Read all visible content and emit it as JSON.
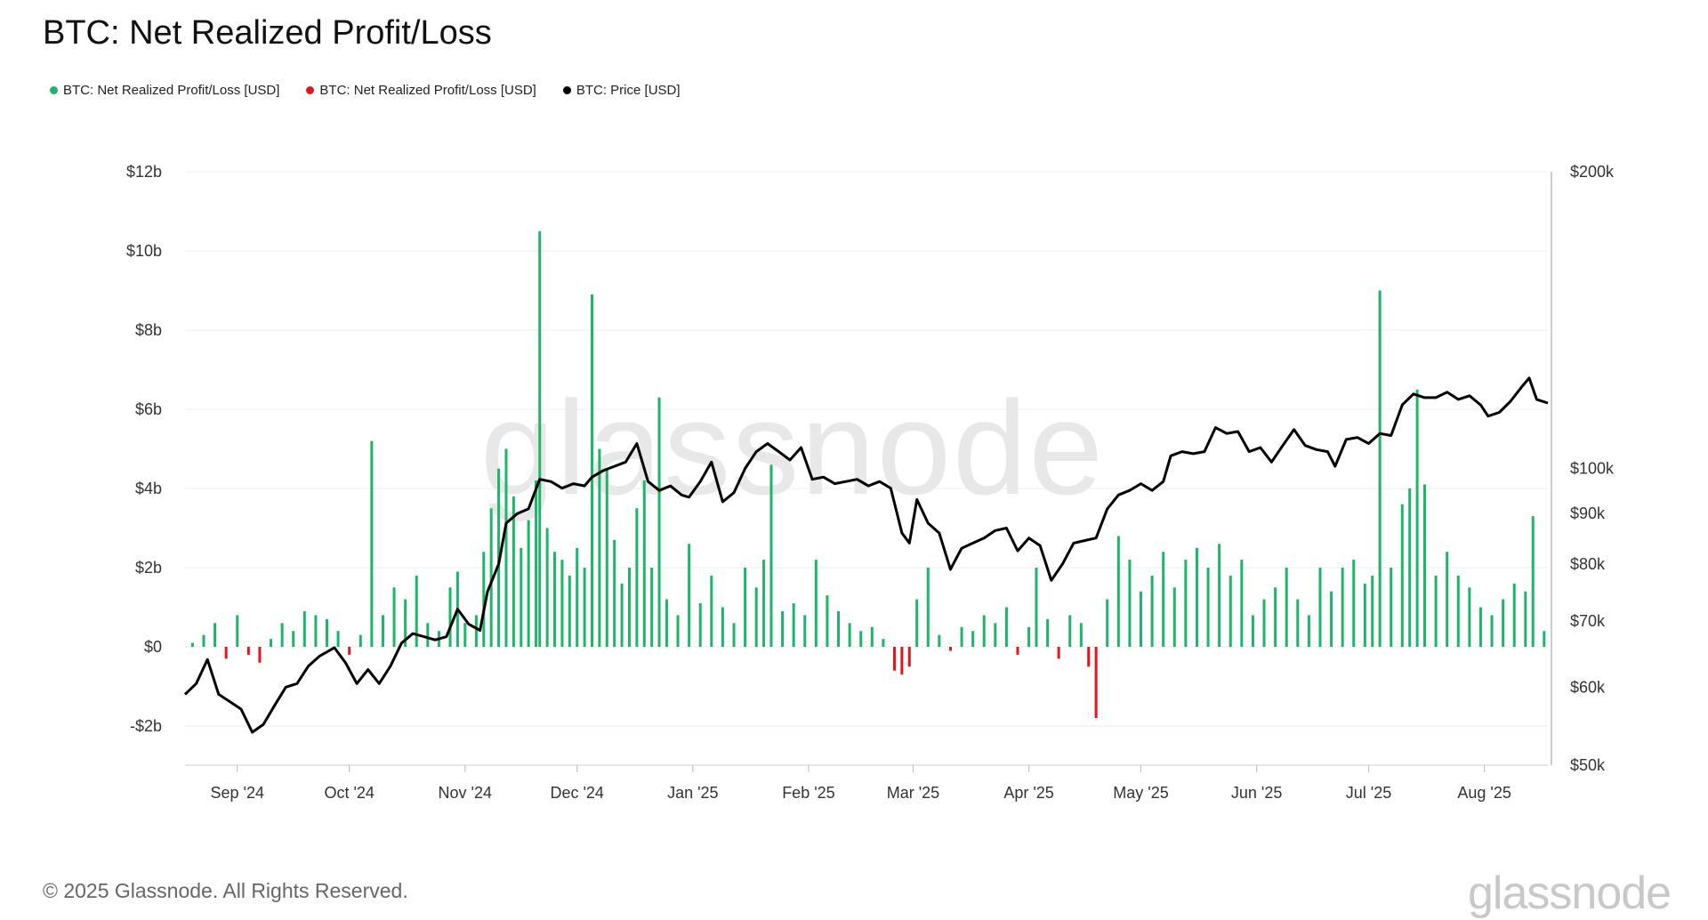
{
  "title": "BTC: Net Realized Profit/Loss",
  "legend": [
    {
      "label": "BTC: Net Realized Profit/Loss [USD]",
      "color": "#1db56a"
    },
    {
      "label": "BTC: Net Realized Profit/Loss [USD]",
      "color": "#e8141c"
    },
    {
      "label": "BTC: Price [USD]",
      "color": "#000000"
    }
  ],
  "footer": "© 2025 Glassnode. All Rights Reserved.",
  "logo": "glassnode",
  "watermark": "glassnode",
  "chart_data": {
    "type": "bar",
    "title": "BTC: Net Realized Profit/Loss",
    "colors": {
      "positive": "#1db56a",
      "negative": "#e8141c",
      "price": "#000000"
    },
    "left_axis": {
      "ticks": [
        -2,
        0,
        2,
        4,
        6,
        8,
        10,
        12
      ],
      "labels": [
        "-$2b",
        "$0",
        "$2b",
        "$4b",
        "$6b",
        "$8b",
        "$10b",
        "$12b"
      ],
      "range": [
        -3,
        12
      ]
    },
    "right_axis": {
      "scale": "log",
      "ticks": [
        50000,
        60000,
        70000,
        80000,
        90000,
        100000,
        200000
      ],
      "labels": [
        "$50k",
        "$60k",
        "$70k",
        "$80k",
        "$90k",
        "$100k",
        "$200k"
      ],
      "range": [
        50000,
        200000
      ]
    },
    "x_axis": {
      "ticks": [
        "Sep '24",
        "Oct '24",
        "Nov '24",
        "Dec '24",
        "Jan '25",
        "Feb '25",
        "Mar '25",
        "Apr '25",
        "May '25",
        "Jun '25",
        "Jul '25",
        "Aug '25"
      ]
    },
    "grid": true,
    "legend_position": "top-left",
    "series": [
      {
        "name": "BTC: Net Realized Profit/Loss [USD]",
        "points": [
          [
            "2024-08-20",
            0.1
          ],
          [
            "2024-08-23",
            0.3
          ],
          [
            "2024-08-26",
            0.6
          ],
          [
            "2024-08-29",
            -0.3
          ],
          [
            "2024-09-01",
            0.8
          ],
          [
            "2024-09-04",
            -0.2
          ],
          [
            "2024-09-07",
            -0.4
          ],
          [
            "2024-09-10",
            0.2
          ],
          [
            "2024-09-13",
            0.6
          ],
          [
            "2024-09-16",
            0.4
          ],
          [
            "2024-09-19",
            0.9
          ],
          [
            "2024-09-22",
            0.8
          ],
          [
            "2024-09-25",
            0.7
          ],
          [
            "2024-09-28",
            0.4
          ],
          [
            "2024-10-01",
            -0.2
          ],
          [
            "2024-10-04",
            0.3
          ],
          [
            "2024-10-07",
            5.2
          ],
          [
            "2024-10-10",
            0.8
          ],
          [
            "2024-10-13",
            1.5
          ],
          [
            "2024-10-16",
            1.2
          ],
          [
            "2024-10-19",
            1.8
          ],
          [
            "2024-10-22",
            0.6
          ],
          [
            "2024-10-25",
            0.4
          ],
          [
            "2024-10-28",
            1.5
          ],
          [
            "2024-10-30",
            1.9
          ],
          [
            "2024-11-01",
            0.6
          ],
          [
            "2024-11-04",
            0.8
          ],
          [
            "2024-11-06",
            2.4
          ],
          [
            "2024-11-08",
            3.5
          ],
          [
            "2024-11-10",
            4.5
          ],
          [
            "2024-11-12",
            5.0
          ],
          [
            "2024-11-14",
            3.8
          ],
          [
            "2024-11-16",
            2.5
          ],
          [
            "2024-11-18",
            3.2
          ],
          [
            "2024-11-20",
            4.2
          ],
          [
            "2024-11-21",
            10.5
          ],
          [
            "2024-11-23",
            3.0
          ],
          [
            "2024-11-25",
            2.4
          ],
          [
            "2024-11-27",
            2.2
          ],
          [
            "2024-11-29",
            1.8
          ],
          [
            "2024-12-01",
            2.5
          ],
          [
            "2024-12-03",
            2.0
          ],
          [
            "2024-12-05",
            8.9
          ],
          [
            "2024-12-07",
            5.0
          ],
          [
            "2024-12-09",
            4.5
          ],
          [
            "2024-12-11",
            2.7
          ],
          [
            "2024-12-13",
            1.6
          ],
          [
            "2024-12-15",
            2.0
          ],
          [
            "2024-12-17",
            3.5
          ],
          [
            "2024-12-19",
            4.2
          ],
          [
            "2024-12-21",
            2.0
          ],
          [
            "2024-12-23",
            6.3
          ],
          [
            "2024-12-25",
            1.2
          ],
          [
            "2024-12-28",
            0.8
          ],
          [
            "2024-12-31",
            2.6
          ],
          [
            "2025-01-03",
            1.1
          ],
          [
            "2025-01-06",
            1.8
          ],
          [
            "2025-01-09",
            1.0
          ],
          [
            "2025-01-12",
            0.6
          ],
          [
            "2025-01-15",
            2.0
          ],
          [
            "2025-01-18",
            1.5
          ],
          [
            "2025-01-20",
            2.2
          ],
          [
            "2025-01-22",
            4.6
          ],
          [
            "2025-01-25",
            0.9
          ],
          [
            "2025-01-28",
            1.1
          ],
          [
            "2025-01-31",
            0.8
          ],
          [
            "2025-02-03",
            2.2
          ],
          [
            "2025-02-06",
            1.3
          ],
          [
            "2025-02-09",
            0.9
          ],
          [
            "2025-02-12",
            0.6
          ],
          [
            "2025-02-15",
            0.4
          ],
          [
            "2025-02-18",
            0.5
          ],
          [
            "2025-02-21",
            0.2
          ],
          [
            "2025-02-24",
            -0.6
          ],
          [
            "2025-02-26",
            -0.7
          ],
          [
            "2025-02-28",
            -0.5
          ],
          [
            "2025-03-02",
            1.2
          ],
          [
            "2025-03-05",
            2.0
          ],
          [
            "2025-03-08",
            0.3
          ],
          [
            "2025-03-11",
            -0.1
          ],
          [
            "2025-03-14",
            0.5
          ],
          [
            "2025-03-17",
            0.4
          ],
          [
            "2025-03-20",
            0.8
          ],
          [
            "2025-03-23",
            0.6
          ],
          [
            "2025-03-26",
            1.0
          ],
          [
            "2025-03-29",
            -0.2
          ],
          [
            "2025-04-01",
            0.5
          ],
          [
            "2025-04-03",
            2.0
          ],
          [
            "2025-04-06",
            0.7
          ],
          [
            "2025-04-09",
            -0.3
          ],
          [
            "2025-04-12",
            0.8
          ],
          [
            "2025-04-15",
            0.6
          ],
          [
            "2025-04-17",
            -0.5
          ],
          [
            "2025-04-19",
            -1.8
          ],
          [
            "2025-04-22",
            1.2
          ],
          [
            "2025-04-25",
            2.8
          ],
          [
            "2025-04-28",
            2.2
          ],
          [
            "2025-05-01",
            1.4
          ],
          [
            "2025-05-04",
            1.8
          ],
          [
            "2025-05-07",
            2.4
          ],
          [
            "2025-05-10",
            1.5
          ],
          [
            "2025-05-13",
            2.2
          ],
          [
            "2025-05-16",
            2.5
          ],
          [
            "2025-05-19",
            2.0
          ],
          [
            "2025-05-22",
            2.6
          ],
          [
            "2025-05-25",
            1.8
          ],
          [
            "2025-05-28",
            2.2
          ],
          [
            "2025-05-31",
            0.8
          ],
          [
            "2025-06-03",
            1.2
          ],
          [
            "2025-06-06",
            1.5
          ],
          [
            "2025-06-09",
            2.0
          ],
          [
            "2025-06-12",
            1.2
          ],
          [
            "2025-06-15",
            0.8
          ],
          [
            "2025-06-18",
            2.0
          ],
          [
            "2025-06-21",
            1.4
          ],
          [
            "2025-06-24",
            2.0
          ],
          [
            "2025-06-27",
            2.2
          ],
          [
            "2025-06-30",
            1.6
          ],
          [
            "2025-07-02",
            1.8
          ],
          [
            "2025-07-04",
            9.0
          ],
          [
            "2025-07-07",
            2.0
          ],
          [
            "2025-07-10",
            3.6
          ],
          [
            "2025-07-12",
            4.0
          ],
          [
            "2025-07-14",
            6.5
          ],
          [
            "2025-07-16",
            4.1
          ],
          [
            "2025-07-19",
            1.8
          ],
          [
            "2025-07-22",
            2.4
          ],
          [
            "2025-07-25",
            1.8
          ],
          [
            "2025-07-28",
            1.5
          ],
          [
            "2025-07-31",
            1.0
          ],
          [
            "2025-08-03",
            0.8
          ],
          [
            "2025-08-06",
            1.2
          ],
          [
            "2025-08-09",
            1.6
          ],
          [
            "2025-08-12",
            1.4
          ],
          [
            "2025-08-14",
            3.3
          ],
          [
            "2025-08-17",
            0.4
          ]
        ]
      },
      {
        "name": "BTC: Price [USD]",
        "points": [
          [
            "2024-08-18",
            59000
          ],
          [
            "2024-08-21",
            60500
          ],
          [
            "2024-08-24",
            64000
          ],
          [
            "2024-08-27",
            59000
          ],
          [
            "2024-08-30",
            58000
          ],
          [
            "2024-09-02",
            57000
          ],
          [
            "2024-09-05",
            54000
          ],
          [
            "2024-09-08",
            55000
          ],
          [
            "2024-09-11",
            57500
          ],
          [
            "2024-09-14",
            60000
          ],
          [
            "2024-09-17",
            60500
          ],
          [
            "2024-09-20",
            63000
          ],
          [
            "2024-09-23",
            64500
          ],
          [
            "2024-09-27",
            65800
          ],
          [
            "2024-09-30",
            63500
          ],
          [
            "2024-10-03",
            60500
          ],
          [
            "2024-10-06",
            62500
          ],
          [
            "2024-10-09",
            60500
          ],
          [
            "2024-10-12",
            63000
          ],
          [
            "2024-10-15",
            66500
          ],
          [
            "2024-10-18",
            68000
          ],
          [
            "2024-10-21",
            67500
          ],
          [
            "2024-10-24",
            67000
          ],
          [
            "2024-10-27",
            67500
          ],
          [
            "2024-10-30",
            72000
          ],
          [
            "2024-11-02",
            69500
          ],
          [
            "2024-11-05",
            68500
          ],
          [
            "2024-11-07",
            75000
          ],
          [
            "2024-11-10",
            80000
          ],
          [
            "2024-11-12",
            88000
          ],
          [
            "2024-11-15",
            90000
          ],
          [
            "2024-11-18",
            91000
          ],
          [
            "2024-11-21",
            97500
          ],
          [
            "2024-11-24",
            97000
          ],
          [
            "2024-11-27",
            95500
          ],
          [
            "2024-11-30",
            96500
          ],
          [
            "2024-12-03",
            96000
          ],
          [
            "2024-12-05",
            98000
          ],
          [
            "2024-12-08",
            99500
          ],
          [
            "2024-12-11",
            100500
          ],
          [
            "2024-12-14",
            101500
          ],
          [
            "2024-12-17",
            106000
          ],
          [
            "2024-12-20",
            97000
          ],
          [
            "2024-12-23",
            95000
          ],
          [
            "2024-12-26",
            96000
          ],
          [
            "2024-12-29",
            94000
          ],
          [
            "2024-12-31",
            93500
          ],
          [
            "2025-01-03",
            97000
          ],
          [
            "2025-01-06",
            101500
          ],
          [
            "2025-01-09",
            92500
          ],
          [
            "2025-01-12",
            94500
          ],
          [
            "2025-01-15",
            100000
          ],
          [
            "2025-01-18",
            104000
          ],
          [
            "2025-01-21",
            106000
          ],
          [
            "2025-01-24",
            104000
          ],
          [
            "2025-01-27",
            102000
          ],
          [
            "2025-01-30",
            105000
          ],
          [
            "2025-02-02",
            97500
          ],
          [
            "2025-02-05",
            98000
          ],
          [
            "2025-02-08",
            96500
          ],
          [
            "2025-02-11",
            97000
          ],
          [
            "2025-02-14",
            97500
          ],
          [
            "2025-02-17",
            96000
          ],
          [
            "2025-02-20",
            97000
          ],
          [
            "2025-02-23",
            95500
          ],
          [
            "2025-02-26",
            86000
          ],
          [
            "2025-02-28",
            84000
          ],
          [
            "2025-03-02",
            93000
          ],
          [
            "2025-03-05",
            88000
          ],
          [
            "2025-03-08",
            86000
          ],
          [
            "2025-03-11",
            79000
          ],
          [
            "2025-03-14",
            83000
          ],
          [
            "2025-03-17",
            84000
          ],
          [
            "2025-03-20",
            85000
          ],
          [
            "2025-03-23",
            86500
          ],
          [
            "2025-03-26",
            87000
          ],
          [
            "2025-03-29",
            82500
          ],
          [
            "2025-04-01",
            85000
          ],
          [
            "2025-04-04",
            83500
          ],
          [
            "2025-04-07",
            77000
          ],
          [
            "2025-04-10",
            80000
          ],
          [
            "2025-04-13",
            84000
          ],
          [
            "2025-04-16",
            84500
          ],
          [
            "2025-04-19",
            85000
          ],
          [
            "2025-04-22",
            91000
          ],
          [
            "2025-04-25",
            94000
          ],
          [
            "2025-04-28",
            95000
          ],
          [
            "2025-05-01",
            96500
          ],
          [
            "2025-05-04",
            95000
          ],
          [
            "2025-05-07",
            97000
          ],
          [
            "2025-05-09",
            103000
          ],
          [
            "2025-05-12",
            104000
          ],
          [
            "2025-05-15",
            103500
          ],
          [
            "2025-05-18",
            104000
          ],
          [
            "2025-05-21",
            110000
          ],
          [
            "2025-05-24",
            108500
          ],
          [
            "2025-05-27",
            109000
          ],
          [
            "2025-05-30",
            104000
          ],
          [
            "2025-06-02",
            105000
          ],
          [
            "2025-06-05",
            101500
          ],
          [
            "2025-06-08",
            105500
          ],
          [
            "2025-06-11",
            109500
          ],
          [
            "2025-06-14",
            105500
          ],
          [
            "2025-06-17",
            104500
          ],
          [
            "2025-06-20",
            104000
          ],
          [
            "2025-06-22",
            100500
          ],
          [
            "2025-06-25",
            107000
          ],
          [
            "2025-06-28",
            107500
          ],
          [
            "2025-07-01",
            106000
          ],
          [
            "2025-07-04",
            108500
          ],
          [
            "2025-07-07",
            108000
          ],
          [
            "2025-07-10",
            116000
          ],
          [
            "2025-07-13",
            119000
          ],
          [
            "2025-07-16",
            118000
          ],
          [
            "2025-07-19",
            118000
          ],
          [
            "2025-07-22",
            119500
          ],
          [
            "2025-07-25",
            117500
          ],
          [
            "2025-07-28",
            118500
          ],
          [
            "2025-07-31",
            116000
          ],
          [
            "2025-08-02",
            113000
          ],
          [
            "2025-08-05",
            114000
          ],
          [
            "2025-08-08",
            117000
          ],
          [
            "2025-08-11",
            121000
          ],
          [
            "2025-08-13",
            123500
          ],
          [
            "2025-08-15",
            117500
          ],
          [
            "2025-08-18",
            116500
          ]
        ]
      }
    ]
  }
}
